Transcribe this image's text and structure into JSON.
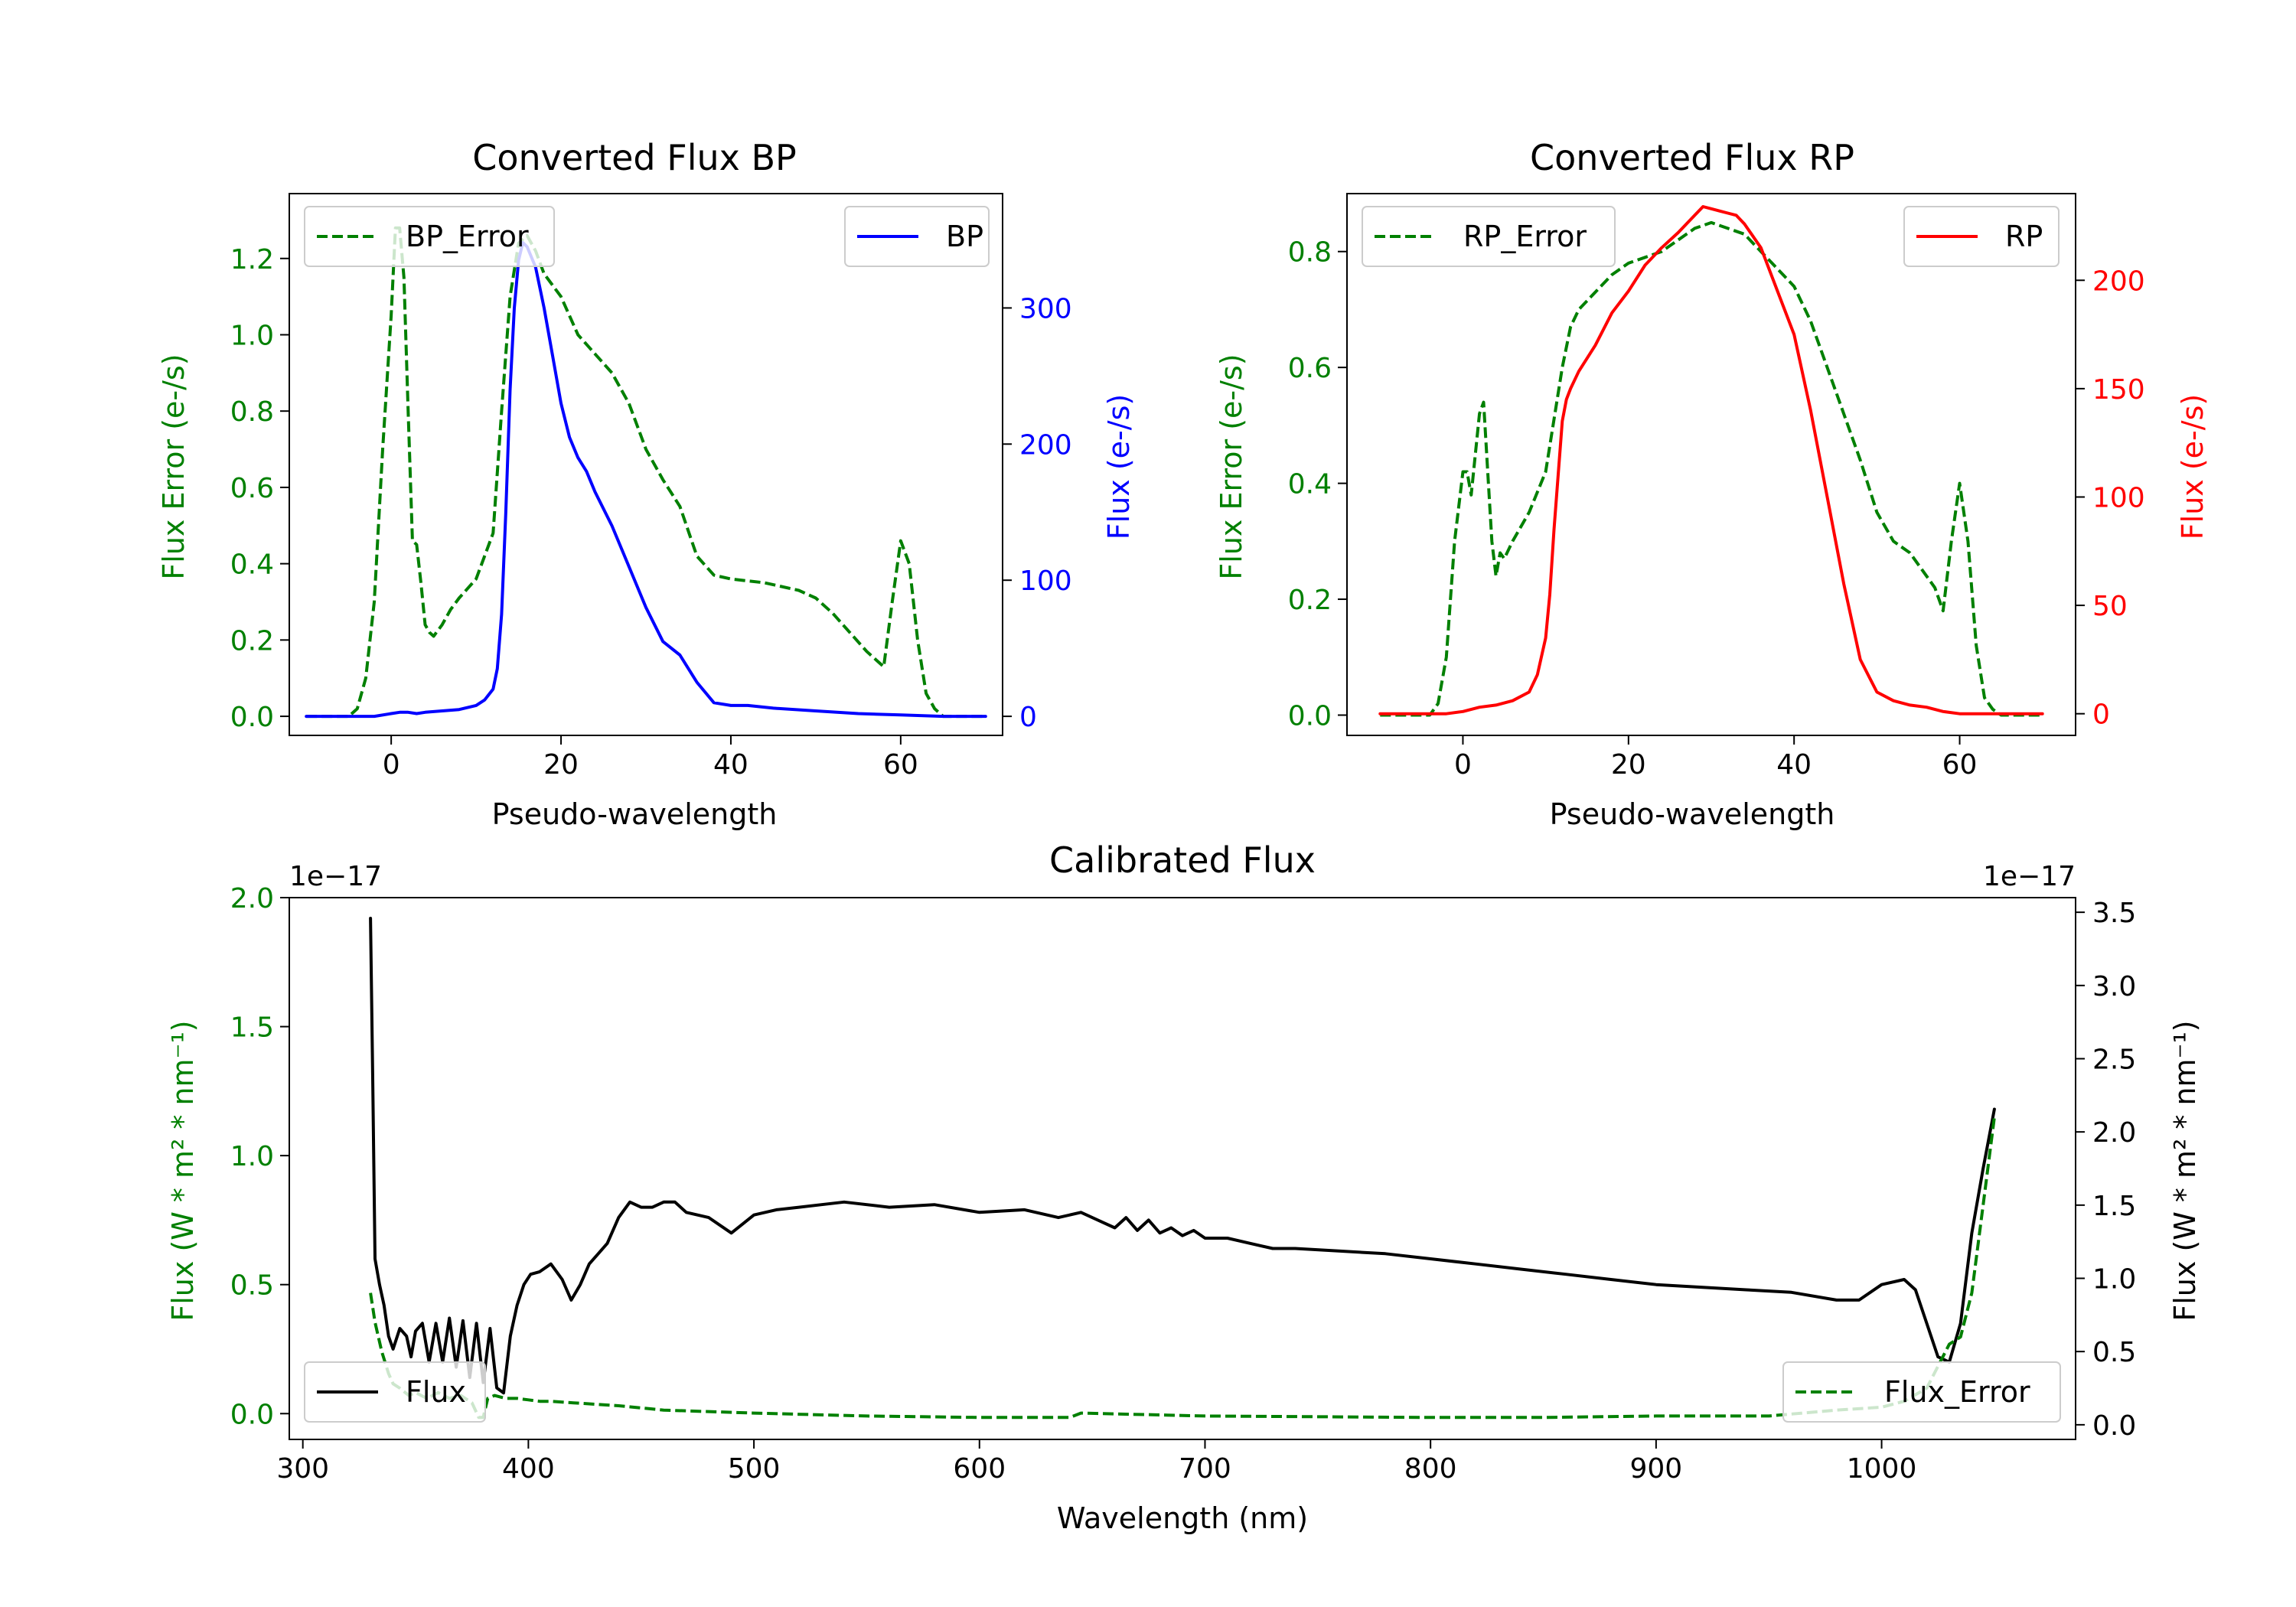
{
  "colors": {
    "green": "#008000",
    "blue": "#0000ff",
    "red": "#ff0000",
    "black": "#000000"
  },
  "chart_data": [
    {
      "type": "line",
      "title": "Converted Flux BP",
      "xlabel": "Pseudo-wavelength",
      "ylabel_left": "Flux Error (e-/s)",
      "ylabel_right": "Flux (e-/s)",
      "xlim": [
        -12,
        72
      ],
      "ylim_left": [
        -0.05,
        1.37
      ],
      "ylim_right": [
        -14,
        384
      ],
      "xticks": [
        0,
        20,
        40,
        60
      ],
      "yticks_left": [
        0.0,
        0.2,
        0.4,
        0.6,
        0.8,
        1.0,
        1.2
      ],
      "yticks_right": [
        0,
        100,
        200,
        300
      ],
      "legend_left": {
        "label": "BP_Error",
        "placement": "upper left"
      },
      "legend_right": {
        "label": "BP",
        "placement": "upper right"
      },
      "series": [
        {
          "name": "BP_Error",
          "axis": "left",
          "color": "#008000",
          "style": "dashed",
          "x": [
            -10,
            -5,
            -4,
            -3,
            -2,
            -1,
            0,
            0.5,
            1,
            1.5,
            2,
            2.5,
            3,
            3.5,
            4,
            4.5,
            5,
            6,
            7,
            8,
            10,
            12,
            13,
            14,
            15,
            16,
            17,
            18,
            20,
            22,
            24,
            26,
            28,
            30,
            32,
            34,
            36,
            38,
            40,
            44,
            48,
            50,
            52,
            54,
            56,
            57,
            58,
            59,
            60,
            61,
            62,
            63,
            64,
            65,
            66,
            70
          ],
          "y": [
            0.0,
            0.0,
            0.02,
            0.1,
            0.3,
            0.7,
            1.05,
            1.28,
            1.28,
            1.15,
            0.8,
            0.46,
            0.45,
            0.35,
            0.24,
            0.22,
            0.21,
            0.24,
            0.28,
            0.31,
            0.36,
            0.48,
            0.8,
            1.1,
            1.24,
            1.26,
            1.22,
            1.16,
            1.1,
            1.0,
            0.95,
            0.9,
            0.82,
            0.7,
            0.62,
            0.55,
            0.42,
            0.37,
            0.36,
            0.35,
            0.33,
            0.31,
            0.27,
            0.22,
            0.17,
            0.15,
            0.13,
            0.3,
            0.46,
            0.4,
            0.2,
            0.06,
            0.02,
            0.0,
            0.0,
            0.0
          ]
        },
        {
          "name": "BP",
          "axis": "right",
          "color": "#0000ff",
          "style": "solid",
          "x": [
            -10,
            -5,
            -2,
            0,
            1,
            2,
            3,
            4,
            6,
            8,
            10,
            11,
            12,
            12.5,
            13,
            13.5,
            14,
            14.5,
            15,
            15.5,
            16,
            17,
            18,
            19,
            20,
            21,
            22,
            23,
            24,
            26,
            28,
            30,
            32,
            34,
            35,
            36,
            38,
            40,
            42,
            45,
            50,
            55,
            60,
            65,
            70
          ],
          "y": [
            0,
            0,
            0,
            2,
            3,
            3,
            2,
            3,
            4,
            5,
            8,
            12,
            20,
            35,
            75,
            150,
            240,
            300,
            335,
            348,
            345,
            330,
            300,
            265,
            230,
            205,
            190,
            180,
            165,
            140,
            110,
            80,
            55,
            45,
            35,
            25,
            10,
            8,
            8,
            6,
            4,
            2,
            1,
            0,
            0
          ]
        }
      ]
    },
    {
      "type": "line",
      "title": "Converted Flux RP",
      "xlabel": "Pseudo-wavelength",
      "ylabel_left": "Flux Error (e-/s)",
      "ylabel_right": "Flux (e-/s)",
      "xlim": [
        -14,
        74
      ],
      "ylim_left": [
        -0.035,
        0.9
      ],
      "ylim_right": [
        -10,
        240
      ],
      "xticks": [
        0,
        20,
        40,
        60
      ],
      "yticks_left": [
        0.0,
        0.2,
        0.4,
        0.6,
        0.8
      ],
      "yticks_right": [
        0,
        50,
        100,
        150,
        200
      ],
      "legend_left": {
        "label": "RP_Error",
        "placement": "upper left"
      },
      "legend_right": {
        "label": "RP",
        "placement": "upper right"
      },
      "series": [
        {
          "name": "RP_Error",
          "axis": "left",
          "color": "#008000",
          "style": "dashed",
          "x": [
            -10,
            -5,
            -4,
            -3,
            -2,
            -1,
            0,
            0.5,
            1,
            1.5,
            2,
            2.5,
            3,
            3.5,
            4,
            4.5,
            5,
            6,
            8,
            10,
            12,
            13,
            14,
            16,
            18,
            20,
            22,
            24,
            26,
            28,
            30,
            32,
            34,
            36,
            38,
            40,
            42,
            44,
            46,
            48,
            50,
            52,
            54,
            56,
            57,
            58,
            59,
            60,
            61,
            62,
            63,
            64,
            65,
            70
          ],
          "y": [
            0.0,
            0.0,
            0.0,
            0.02,
            0.1,
            0.3,
            0.42,
            0.42,
            0.38,
            0.45,
            0.52,
            0.54,
            0.42,
            0.3,
            0.24,
            0.28,
            0.27,
            0.3,
            0.35,
            0.42,
            0.6,
            0.67,
            0.7,
            0.73,
            0.76,
            0.78,
            0.79,
            0.8,
            0.82,
            0.84,
            0.85,
            0.84,
            0.83,
            0.8,
            0.77,
            0.74,
            0.68,
            0.6,
            0.52,
            0.44,
            0.35,
            0.3,
            0.28,
            0.24,
            0.22,
            0.18,
            0.3,
            0.4,
            0.3,
            0.12,
            0.03,
            0.01,
            0.0,
            0.0
          ]
        },
        {
          "name": "RP",
          "axis": "right",
          "color": "#ff0000",
          "style": "solid",
          "x": [
            -10,
            -5,
            -2,
            0,
            2,
            4,
            6,
            8,
            9,
            10,
            10.5,
            11,
            11.5,
            12,
            12.5,
            13,
            14,
            16,
            18,
            20,
            22,
            24,
            26,
            28,
            29,
            30,
            31,
            32,
            33,
            34,
            36,
            38,
            40,
            42,
            44,
            46,
            48,
            50,
            52,
            54,
            56,
            58,
            60,
            62,
            64,
            66,
            70
          ],
          "y": [
            0,
            0,
            0,
            1,
            3,
            4,
            6,
            10,
            18,
            35,
            55,
            85,
            110,
            135,
            145,
            150,
            158,
            170,
            185,
            195,
            207,
            215,
            222,
            230,
            234,
            233,
            232,
            231,
            230,
            226,
            215,
            195,
            175,
            140,
            100,
            60,
            25,
            10,
            6,
            4,
            3,
            1,
            0,
            0,
            0,
            0,
            0
          ]
        }
      ]
    },
    {
      "type": "line",
      "title": "Calibrated Flux",
      "xlabel": "Wavelength (nm)",
      "ylabel_left": "Flux (W * m² * nm⁻¹)",
      "ylabel_right": "Flux (W * m² * nm⁻¹)",
      "offset_left": "1e−17",
      "offset_right": "1e−17",
      "xlim": [
        294,
        1086
      ],
      "ylim_left": [
        -0.1,
        2.0
      ],
      "ylim_right": [
        -0.1,
        3.6
      ],
      "xticks": [
        300,
        400,
        500,
        600,
        700,
        800,
        900,
        1000
      ],
      "yticks_left": [
        0.0,
        0.5,
        1.0,
        1.5,
        2.0
      ],
      "yticks_right": [
        0.0,
        0.5,
        1.0,
        1.5,
        2.0,
        2.5,
        3.0,
        3.5
      ],
      "legend_left": {
        "label": "Flux",
        "placement": "lower left"
      },
      "legend_right": {
        "label": "Flux_Error",
        "placement": "lower right"
      },
      "series": [
        {
          "name": "Flux",
          "axis": "left",
          "color": "#000000",
          "style": "solid",
          "x": [
            330,
            331,
            332,
            334,
            336,
            338,
            340,
            343,
            346,
            348,
            350,
            353,
            356,
            359,
            362,
            365,
            368,
            371,
            374,
            377,
            380,
            383,
            386,
            389,
            392,
            395,
            398,
            401,
            405,
            410,
            415,
            419,
            423,
            427,
            431,
            435,
            440,
            445,
            450,
            455,
            460,
            465,
            470,
            480,
            490,
            500,
            510,
            520,
            530,
            540,
            560,
            580,
            600,
            620,
            635,
            645,
            655,
            660,
            665,
            670,
            675,
            680,
            685,
            690,
            695,
            700,
            710,
            720,
            730,
            740,
            760,
            780,
            800,
            820,
            840,
            860,
            880,
            900,
            920,
            940,
            960,
            980,
            990,
            1000,
            1010,
            1015,
            1020,
            1025,
            1030,
            1035,
            1040,
            1045,
            1050
          ],
          "y": [
            1.92,
            1.3,
            0.6,
            0.5,
            0.42,
            0.3,
            0.25,
            0.33,
            0.3,
            0.22,
            0.32,
            0.35,
            0.2,
            0.35,
            0.2,
            0.37,
            0.18,
            0.36,
            0.14,
            0.35,
            0.12,
            0.33,
            0.1,
            0.08,
            0.3,
            0.42,
            0.5,
            0.54,
            0.55,
            0.58,
            0.52,
            0.44,
            0.5,
            0.58,
            0.62,
            0.66,
            0.76,
            0.82,
            0.8,
            0.8,
            0.82,
            0.82,
            0.78,
            0.76,
            0.7,
            0.77,
            0.79,
            0.8,
            0.81,
            0.82,
            0.8,
            0.81,
            0.78,
            0.79,
            0.76,
            0.78,
            0.74,
            0.72,
            0.76,
            0.71,
            0.75,
            0.7,
            0.72,
            0.69,
            0.71,
            0.68,
            0.68,
            0.66,
            0.64,
            0.64,
            0.63,
            0.62,
            0.6,
            0.58,
            0.56,
            0.54,
            0.52,
            0.5,
            0.49,
            0.48,
            0.47,
            0.44,
            0.44,
            0.5,
            0.52,
            0.48,
            0.35,
            0.22,
            0.2,
            0.35,
            0.7,
            0.95,
            1.18
          ]
        },
        {
          "name": "Flux_Error",
          "axis": "right",
          "color": "#008000",
          "style": "dashed",
          "x": [
            330,
            332,
            335,
            338,
            340,
            343,
            347,
            350,
            355,
            360,
            365,
            370,
            375,
            378,
            380,
            382,
            385,
            390,
            395,
            400,
            405,
            410,
            420,
            440,
            460,
            500,
            550,
            600,
            640,
            645,
            700,
            800,
            850,
            900,
            950,
            980,
            1000,
            1010,
            1020,
            1030,
            1035,
            1040,
            1045,
            1050
          ],
          "y": [
            0.9,
            0.7,
            0.5,
            0.35,
            0.28,
            0.25,
            0.2,
            0.22,
            0.18,
            0.22,
            0.18,
            0.2,
            0.15,
            0.05,
            0.05,
            0.18,
            0.2,
            0.18,
            0.18,
            0.17,
            0.16,
            0.16,
            0.15,
            0.13,
            0.1,
            0.08,
            0.06,
            0.05,
            0.05,
            0.08,
            0.06,
            0.05,
            0.05,
            0.06,
            0.06,
            0.1,
            0.12,
            0.16,
            0.25,
            0.55,
            0.6,
            0.9,
            1.5,
            2.1
          ]
        }
      ]
    }
  ]
}
